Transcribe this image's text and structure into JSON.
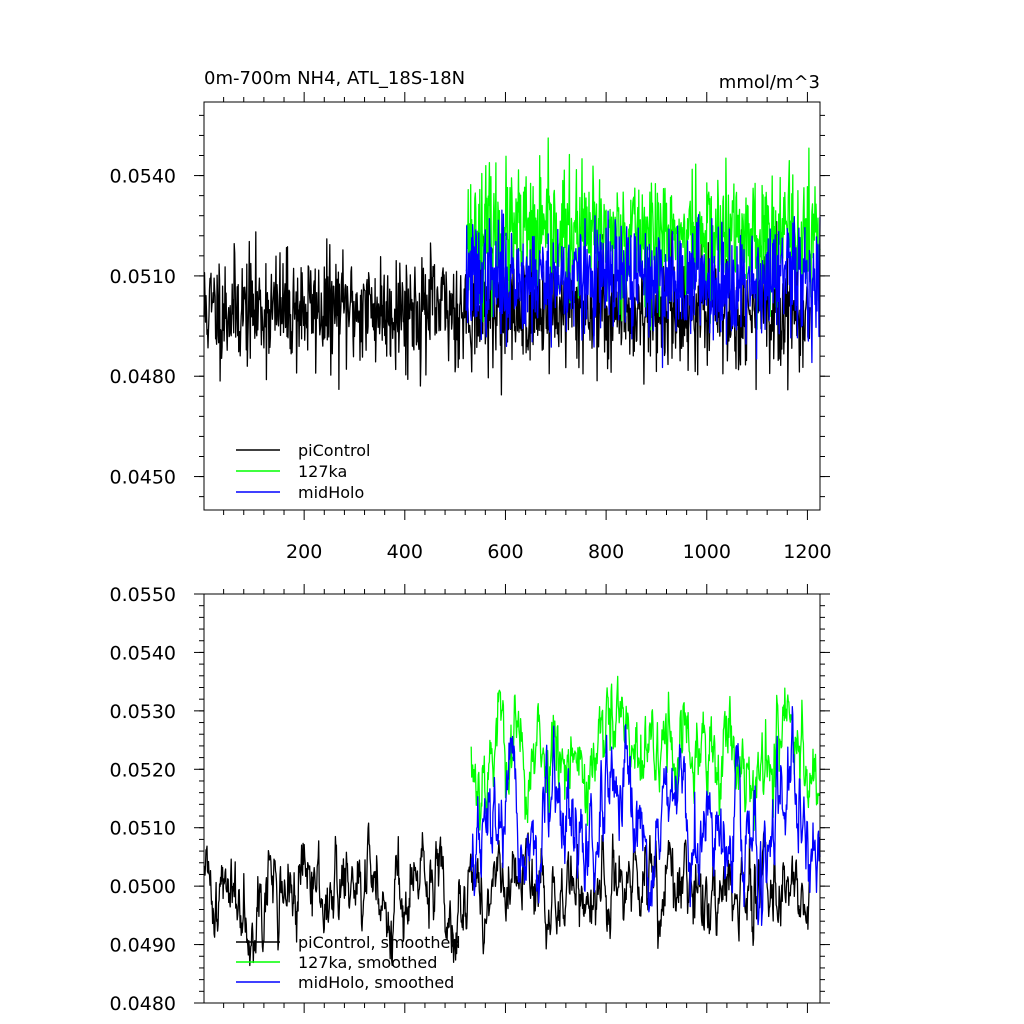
{
  "colors": {
    "piControl": "#000000",
    "127ka": "#00ff00",
    "midHolo": "#0000ff",
    "axis": "#000000",
    "background": "#ffffff"
  },
  "chart_data": [
    {
      "type": "line",
      "title": "0m-700m NH4, ATL_18S-18N",
      "units": "mmol/m^3",
      "xlabel": "",
      "ylabel": "",
      "xlim": [
        1,
        1225
      ],
      "ylim": [
        0.044,
        0.0562
      ],
      "xticks": [
        200,
        400,
        600,
        800,
        1000,
        1200
      ],
      "xtick_labels": [
        "200",
        "400",
        "600",
        "800",
        "1000",
        "1200"
      ],
      "yticks": [
        0.045,
        0.048,
        0.051,
        0.054
      ],
      "ytick_labels": [
        "0.0450",
        "0.0480",
        "0.0510",
        "0.0540"
      ],
      "grid": false,
      "legend_position": "bottom-left",
      "series": [
        {
          "name": "piControl",
          "label": "piControl",
          "color_key": "piControl",
          "start": 1,
          "end": 1205,
          "mean": 0.05,
          "noise": 0.00085,
          "seed": 11
        },
        {
          "name": "127ka",
          "label": "127ka",
          "color_key": "127ka",
          "start": 522,
          "end": 1225,
          "mean": 0.0522,
          "noise": 0.00095,
          "seed": 23
        },
        {
          "name": "midHolo",
          "label": "midHolo",
          "color_key": "midHolo",
          "start": 522,
          "end": 1225,
          "mean": 0.0509,
          "noise": 0.00085,
          "seed": 37
        }
      ]
    },
    {
      "type": "line",
      "title": "",
      "xlabel": "",
      "ylabel": "",
      "xlim": [
        1,
        1225
      ],
      "ylim": [
        0.048,
        0.055
      ],
      "xticks": [
        200,
        400,
        600,
        800,
        1000,
        1200
      ],
      "xtick_labels": [],
      "yticks": [
        0.048,
        0.049,
        0.05,
        0.051,
        0.052,
        0.053,
        0.054,
        0.055
      ],
      "ytick_labels": [
        "0.0480",
        "0.0490",
        "0.0500",
        "0.0510",
        "0.0520",
        "0.0530",
        "0.0540",
        "0.0550"
      ],
      "grid": false,
      "legend_position": "bottom-left",
      "series": [
        {
          "name": "piControl, smoothed",
          "label": "piControl, smoothed",
          "color_key": "piControl",
          "start": 1,
          "end": 1205,
          "mean": 0.0499,
          "noise": 0.00045,
          "seed": 41
        },
        {
          "name": "127ka, smoothed",
          "label": "127ka, smoothed",
          "color_key": "127ka",
          "start": 532,
          "end": 1225,
          "mean": 0.0523,
          "noise": 0.0005,
          "seed": 53
        },
        {
          "name": "midHolo, smoothed",
          "label": "midHolo, smoothed",
          "color_key": "midHolo",
          "start": 532,
          "end": 1225,
          "mean": 0.0509,
          "noise": 0.0005,
          "seed": 67
        }
      ]
    }
  ]
}
